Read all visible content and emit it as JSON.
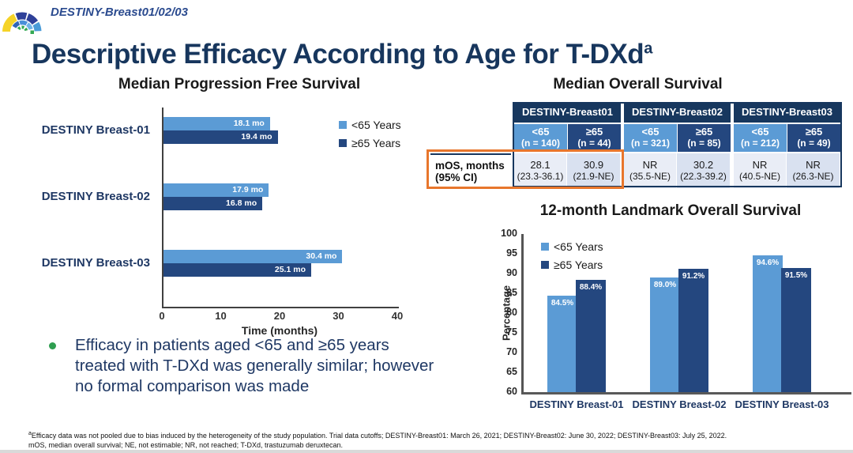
{
  "slide": {
    "program_tag": "DESTINY-Breast01/02/03",
    "title": "Descriptive Efficacy According to Age for T-DXd",
    "title_sup": "a"
  },
  "colors": {
    "series_lt65": "#5B9BD5",
    "series_ge65": "#24477F",
    "table_header_navy": "#17375E",
    "accent_orange": "#E8762C",
    "title_navy": "#17365D",
    "bullet_green": "#2E9E50"
  },
  "chart_data": [
    {
      "id": "pfs",
      "type": "bar",
      "orientation": "horizontal",
      "title": "Median Progression Free Survival",
      "categories": [
        "DESTINY Breast-01",
        "DESTINY Breast-02",
        "DESTINY Breast-03"
      ],
      "series": [
        {
          "name": "<65 Years",
          "color": "#5B9BD5",
          "values": [
            18.1,
            17.9,
            30.4
          ],
          "labels": [
            "18.1 mo",
            "17.9 mo",
            "30.4 mo"
          ]
        },
        {
          "name": "≥65 Years",
          "color": "#24477F",
          "values": [
            19.4,
            16.8,
            25.1
          ],
          "labels": [
            "19.4 mo",
            "16.8 mo",
            "25.1 mo"
          ]
        }
      ],
      "xlabel": "Time (months)",
      "xlim": [
        0,
        40
      ],
      "xticks": [
        0,
        10,
        20,
        30,
        40
      ],
      "legend_position": "top-right",
      "grid": false
    },
    {
      "id": "os_table",
      "type": "table",
      "title": "Median Overall Survival",
      "row_label_line1": "mOS, months",
      "row_label_line2": "(95% CI)",
      "trials": [
        {
          "name": "DESTINY-Breast01",
          "groups": [
            {
              "age": "<65",
              "n": "(n = 140)",
              "value": "28.1",
              "ci": "(23.3-36.1)"
            },
            {
              "age": "≥65",
              "n": "(n = 44)",
              "value": "30.9",
              "ci": "(21.9-NE)"
            }
          ]
        },
        {
          "name": "DESTINY-Breast02",
          "groups": [
            {
              "age": "<65",
              "n": "(n = 321)",
              "value": "NR",
              "ci": "(35.5-NE)"
            },
            {
              "age": "≥65",
              "n": "(n = 85)",
              "value": "30.2",
              "ci": "(22.3-39.2)"
            }
          ]
        },
        {
          "name": "DESTINY-Breast03",
          "groups": [
            {
              "age": "<65",
              "n": "(n = 212)",
              "value": "NR",
              "ci": "(40.5-NE)"
            },
            {
              "age": "≥65",
              "n": "(n = 49)",
              "value": "NR",
              "ci": "(26.3-NE)"
            }
          ]
        }
      ],
      "highlight_note": "orange box around mOS row label and DESTINY-Breast01 values"
    },
    {
      "id": "landmark",
      "type": "bar",
      "orientation": "vertical",
      "title": "12-month Landmark Overall Survival",
      "categories": [
        "DESTINY Breast-01",
        "DESTINY Breast-02",
        "DESTINY Breast-03"
      ],
      "series": [
        {
          "name": "<65 Years",
          "color": "#5B9BD5",
          "values": [
            84.5,
            89.0,
            94.6
          ],
          "labels": [
            "84.5%",
            "89.0%",
            "94.6%"
          ]
        },
        {
          "name": "≥65 Years",
          "color": "#24477F",
          "values": [
            88.4,
            91.2,
            91.5
          ],
          "labels": [
            "88.4%",
            "91.2%",
            "91.5%"
          ]
        }
      ],
      "ylabel": "Percentage",
      "ylim": [
        60,
        100
      ],
      "yticks": [
        100,
        95,
        90,
        85,
        80,
        75,
        70,
        65,
        60
      ],
      "legend_position": "top-left",
      "grid": false
    }
  ],
  "bullet": {
    "text": "Efficacy in patients aged <65 and ≥65 years treated with T-DXd was generally similar; however no formal comparison was made"
  },
  "footnotes": {
    "sup": "a",
    "line1": "Efficacy data was not pooled due to bias induced by the heterogeneity of the study population. Trial data cutoffs; DESTINY-Breast01: March 26, 2021; DESTINY-Breast02: June 30, 2022; DESTINY-Breast03: July 25, 2022.",
    "line2": "mOS, median overall survival; NE, not estimable; NR, not reached; T-DXd, trastuzumab deruxtecan."
  }
}
